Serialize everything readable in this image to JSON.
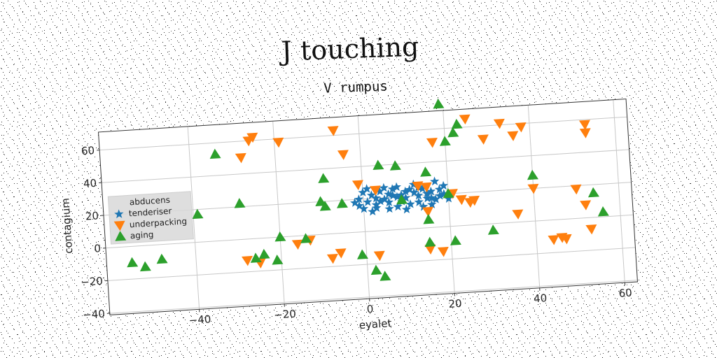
{
  "chart_data": {
    "type": "scatter",
    "suptitle": "J touching",
    "title": "V rumpus",
    "xlabel": "eyalet",
    "ylabel": "contagium",
    "xlim": [
      -61,
      63
    ],
    "ylim": [
      -41,
      71
    ],
    "xticks": [
      -40,
      -20,
      0,
      20,
      40,
      60
    ],
    "yticks": [
      -40,
      -20,
      0,
      20,
      40,
      60
    ],
    "xtick_labels": [
      "−40",
      "−20",
      "0",
      "20",
      "40",
      "60"
    ],
    "ytick_labels": [
      "−40",
      "−20",
      "0",
      "20",
      "40",
      "60"
    ],
    "grid": true,
    "legend": {
      "title": "abducens",
      "placement": "center-left"
    },
    "series": [
      {
        "name": "tenderiser",
        "marker": "star",
        "color": "#1f77b4",
        "points": [
          [
            -1,
            20
          ],
          [
            0,
            14
          ],
          [
            1,
            18
          ],
          [
            2,
            22
          ],
          [
            3,
            16
          ],
          [
            4,
            24
          ],
          [
            5,
            19
          ],
          [
            6,
            13
          ],
          [
            7,
            21
          ],
          [
            8,
            26
          ],
          [
            9,
            17
          ],
          [
            10,
            23
          ],
          [
            11,
            15
          ],
          [
            12,
            27
          ],
          [
            13,
            20
          ],
          [
            14,
            24
          ],
          [
            15,
            18
          ],
          [
            16,
            22
          ],
          [
            17,
            28
          ],
          [
            18,
            19
          ],
          [
            19,
            25
          ],
          [
            0,
            24
          ],
          [
            2,
            12
          ],
          [
            3,
            20
          ],
          [
            5,
            26
          ],
          [
            6,
            17
          ],
          [
            8,
            14
          ],
          [
            9,
            21
          ],
          [
            11,
            24
          ],
          [
            13,
            16
          ],
          [
            15,
            21
          ],
          [
            16,
            14
          ],
          [
            18,
            23
          ],
          [
            -1,
            16
          ],
          [
            4,
            18
          ],
          [
            7,
            25
          ],
          [
            10,
            19
          ],
          [
            12,
            22
          ],
          [
            14,
            13
          ],
          [
            17,
            17
          ],
          [
            19,
            20
          ],
          [
            1,
            26
          ],
          [
            6,
            22
          ],
          [
            10,
            12
          ],
          [
            20,
            17
          ],
          [
            -2,
            18
          ],
          [
            3,
            14
          ],
          [
            8,
            20
          ],
          [
            13,
            25
          ],
          [
            16,
            18
          ]
        ]
      },
      {
        "name": "underpacking",
        "marker": "triangle-down",
        "color": "#ff7f0e",
        "points": [
          [
            -26,
            60
          ],
          [
            -25,
            62
          ],
          [
            -28,
            50
          ],
          [
            -19,
            58
          ],
          [
            -6,
            63
          ],
          [
            -4,
            48
          ],
          [
            17,
            52
          ],
          [
            25,
            65
          ],
          [
            29,
            52
          ],
          [
            33,
            61
          ],
          [
            36,
            53
          ],
          [
            38,
            58
          ],
          [
            53,
            57
          ],
          [
            53,
            52
          ],
          [
            -1,
            29
          ],
          [
            3,
            25
          ],
          [
            13,
            26
          ],
          [
            15,
            25
          ],
          [
            21,
            20
          ],
          [
            23,
            16
          ],
          [
            25,
            14
          ],
          [
            26,
            15
          ],
          [
            40,
            20
          ],
          [
            50,
            18
          ],
          [
            52,
            8
          ],
          [
            15,
            10
          ],
          [
            36,
            5
          ],
          [
            -16,
            -5
          ],
          [
            -6,
            -12
          ],
          [
            -8,
            -15
          ],
          [
            3,
            -15
          ],
          [
            15,
            -13
          ],
          [
            18,
            -15
          ],
          [
            46,
            -11
          ],
          [
            47,
            -12
          ],
          [
            53,
            -7
          ],
          [
            44,
            -12
          ],
          [
            -25,
            -15
          ],
          [
            -13,
            -3
          ],
          [
            -28,
            -13
          ]
        ]
      },
      {
        "name": "aging",
        "marker": "triangle-up",
        "color": "#2ca02c",
        "points": [
          [
            -34,
            53
          ],
          [
            -39,
            17
          ],
          [
            -29,
            22
          ],
          [
            -9,
            34
          ],
          [
            -10,
            20
          ],
          [
            -9,
            17
          ],
          [
            -5,
            18
          ],
          [
            4,
            40
          ],
          [
            8,
            39
          ],
          [
            15,
            34
          ],
          [
            20,
            20
          ],
          [
            9,
            18
          ],
          [
            15,
            5
          ],
          [
            20,
            52
          ],
          [
            22,
            57
          ],
          [
            23,
            62
          ],
          [
            19,
            75
          ],
          [
            40,
            28
          ],
          [
            54,
            15
          ],
          [
            56,
            3
          ],
          [
            -55,
            -10
          ],
          [
            -52,
            -13
          ],
          [
            -48,
            -9
          ],
          [
            -26,
            -12
          ],
          [
            -24,
            -10
          ],
          [
            -21,
            -14
          ],
          [
            -20,
            0
          ],
          [
            -14,
            -2
          ],
          [
            -1,
            -14
          ],
          [
            2,
            -24
          ],
          [
            4,
            -28
          ],
          [
            15,
            -9
          ],
          [
            21,
            -9
          ],
          [
            30,
            -4
          ]
        ]
      }
    ]
  }
}
